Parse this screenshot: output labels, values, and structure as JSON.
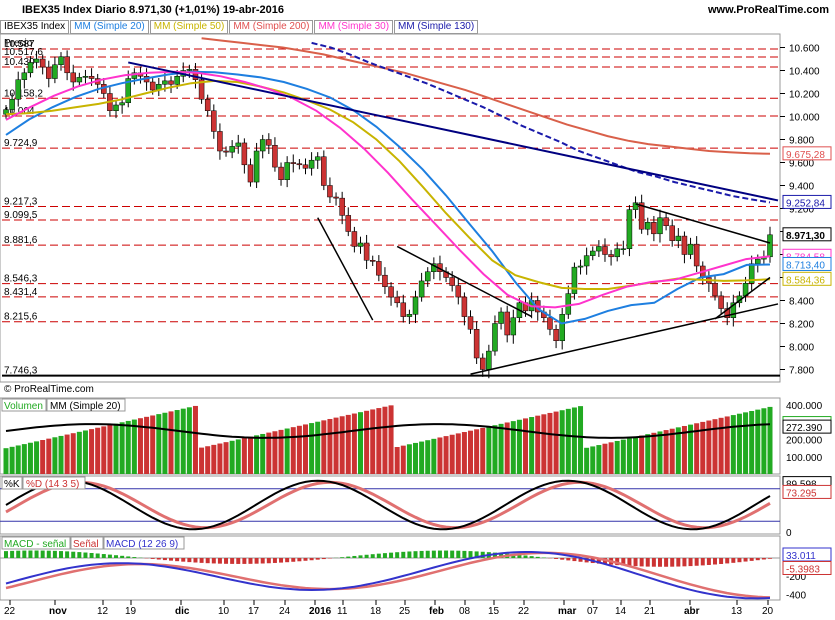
{
  "header": {
    "title": "IBEX35 Index   Diario   8.971,30 (+1,01%)   19-abr-2016",
    "site": "www.ProRealTime.com",
    "copyright": "© ProRealTime.com",
    "price_label": "Precio"
  },
  "legend": [
    {
      "text": "IBEX35 Index",
      "color": "#000000"
    },
    {
      "text": "MM (Simple 20)",
      "color": "#1e7fe0"
    },
    {
      "text": "MM (Simple 50)",
      "color": "#c8b400"
    },
    {
      "text": "MM (Simple 200)",
      "color": "#e05050"
    },
    {
      "text": "MM (Simple 30)",
      "color": "#ff33cc"
    },
    {
      "text": "MM (Simple 130)",
      "color": "#1a1aaa"
    }
  ],
  "colors": {
    "up": "#22aa22",
    "down": "#cc3333",
    "sma20": "#1e7fe0",
    "sma50": "#c8b400",
    "sma200": "#d9604a",
    "sma30": "#ff33cc",
    "sma130": "#1a1aaa",
    "trend": "#000080",
    "hline": "#cc0000"
  },
  "price_axis": {
    "ticks": [
      "10.600",
      "10.400",
      "10.200",
      "10.000",
      "9.800",
      "9.600",
      "9.400",
      "9.200",
      "9.000",
      "8.800",
      "8.600",
      "8.400",
      "8.200",
      "8.000",
      "7.800"
    ]
  },
  "level_labels": [
    "10.587",
    "10.517,6",
    "10.430",
    "10.158,2",
    "10.004",
    "9.724,9",
    "9.217,3",
    "9.099,5",
    "8.881,6",
    "8.546,3",
    "8.431,4",
    "8.215,6",
    "7.746,3"
  ],
  "right_labels": [
    {
      "text": "9.675,28",
      "color": "#e05050"
    },
    {
      "text": "9.252,84",
      "color": "#1a1aaa"
    },
    {
      "text": "8.971,30",
      "color": "#000000"
    },
    {
      "text": "8.784,58",
      "color": "#ff33cc"
    },
    {
      "text": "8.713,40",
      "color": "#1e7fe0"
    },
    {
      "text": "8.584,36",
      "color": "#c8b400"
    }
  ],
  "volume": {
    "legend": [
      "Volumen",
      "MM (Simple 20)"
    ],
    "axis": [
      "400.000",
      "300.000",
      "200.000",
      "100.000"
    ],
    "labels": [
      {
        "text": "293.009",
        "color": "#22aa22"
      },
      {
        "text": "272.390",
        "color": "#000000"
      }
    ]
  },
  "stoch": {
    "legend": [
      "%K",
      "%D (14 3 5)"
    ],
    "axis": [
      "0"
    ],
    "labels": [
      {
        "text": "89.598",
        "color": "#000000"
      },
      {
        "text": "73.295",
        "color": "#cc3333"
      }
    ]
  },
  "macd": {
    "legend": [
      "MACD - señal",
      "Señal",
      "MACD (12 26 9)"
    ],
    "axis": [
      "-200",
      "-400"
    ],
    "labels": [
      {
        "text": "33.011",
        "color": "#3333cc"
      },
      {
        "text": "-5.3983",
        "color": "#cc3333"
      }
    ]
  },
  "date_axis": [
    "22",
    "nov",
    "12",
    "19",
    "dic",
    "10",
    "17",
    "24",
    "2016",
    "11",
    "18",
    "25",
    "feb",
    "08",
    "15",
    "22",
    "mar",
    "07",
    "14",
    "21",
    "abr",
    "13",
    "20"
  ],
  "chart_data": {
    "type": "candlestick",
    "title": "IBEX35 Index Diario 8.971,30 (+1,01%) 19-abr-2016",
    "ylim": [
      7700,
      10700
    ],
    "last_close": 8971.3,
    "closes": [
      10060,
      10150,
      10320,
      10380,
      10470,
      10500,
      10430,
      10330,
      10450,
      10520,
      10380,
      10300,
      10340,
      10350,
      10330,
      10280,
      10200,
      10050,
      10100,
      10120,
      10330,
      10380,
      10350,
      10300,
      10230,
      10280,
      10310,
      10280,
      10350,
      10400,
      10410,
      10320,
      10150,
      10050,
      9870,
      9700,
      9690,
      9740,
      9770,
      9580,
      9430,
      9700,
      9800,
      9750,
      9560,
      9450,
      9600,
      9590,
      9580,
      9550,
      9620,
      9650,
      9400,
      9300,
      9290,
      9140,
      9000,
      8870,
      8900,
      8750,
      8740,
      8620,
      8520,
      8430,
      8380,
      8260,
      8280,
      8430,
      8570,
      8650,
      8720,
      8650,
      8600,
      8530,
      8430,
      8260,
      8150,
      7900,
      7800,
      7960,
      8200,
      8300,
      8100,
      8250,
      8380,
      8310,
      8400,
      8300,
      8250,
      8150,
      8050,
      8280,
      8460,
      8690,
      8700,
      8790,
      8830,
      8870,
      8800,
      8780,
      8850,
      8850,
      9190,
      9250,
      9020,
      9080,
      8980,
      9120,
      9050,
      8920,
      8960,
      8800,
      8890,
      8700,
      8600,
      8550,
      8440,
      8330,
      8250,
      8380,
      8440,
      8550,
      8720,
      8760,
      8780,
      8971.3
    ],
    "series": [
      {
        "name": "MM (Simple 20)",
        "values": [
          9840,
          9975,
          10080,
          10170,
          10240,
          10290,
          10330,
          10365,
          10390,
          10385,
          10365,
          10340,
          10300,
          10240,
          10165,
          10055,
          9910,
          9735,
          9540,
          9315,
          9070,
          8830,
          8560,
          8325,
          8200,
          8240,
          8310,
          8360,
          8380,
          8500,
          8600,
          8630,
          8710,
          8713.4
        ]
      },
      {
        "name": "MM (Simple 50)",
        "values": [
          10020,
          10030,
          10050,
          10080,
          10110,
          10150,
          10200,
          10250,
          10290,
          10310,
          10300,
          10260,
          10210,
          10140,
          10060,
          9950,
          9800,
          9610,
          9390,
          9160,
          8950,
          8750,
          8620,
          8560,
          8510,
          8500,
          8500,
          8530,
          8560,
          8590,
          8580,
          8570,
          8575,
          8584.36
        ]
      },
      {
        "name": "MM (Simple 200)",
        "values": [
          10680,
          10660,
          10640,
          10620,
          10600,
          10570,
          10540,
          10500,
          10460,
          10420,
          10380,
          10330,
          10280,
          10230,
          10170,
          10110,
          10050,
          9990,
          9930,
          9880,
          9830,
          9790,
          9760,
          9740,
          9720,
          9700,
          9690,
          9680,
          9675.28
        ]
      },
      {
        "name": "MM (Simple 30)",
        "values": [
          9970,
          10080,
          10180,
          10260,
          10320,
          10360,
          10380,
          10390,
          10380,
          10350,
          10300,
          10240,
          10160,
          10050,
          9900,
          9720,
          9510,
          9280,
          9060,
          8840,
          8630,
          8450,
          8350,
          8340,
          8370,
          8450,
          8520,
          8560,
          8580,
          8640,
          8700,
          8760,
          8784.58
        ]
      },
      {
        "name": "MM (Simple 130)",
        "values": [
          10640,
          10600,
          10540,
          10470,
          10410,
          10350,
          10290,
          10220,
          10150,
          10080,
          10000,
          9920,
          9850,
          9780,
          9700,
          9640,
          9580,
          9520,
          9480,
          9430,
          9390,
          9350,
          9310,
          9280,
          9252.84
        ]
      }
    ],
    "price_levels": [
      10587,
      10517.6,
      10430,
      10158.2,
      10004,
      9724.9,
      9217.3,
      9099.5,
      8881.6,
      8546.3,
      8431.4,
      8215.6,
      7746.3
    ]
  }
}
